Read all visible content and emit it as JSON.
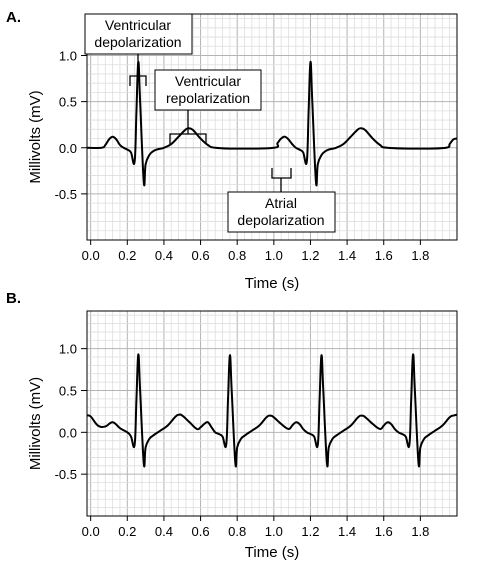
{
  "chart_data": [
    {
      "type": "line",
      "panel_label": "A.",
      "xlabel": "Time (s)",
      "ylabel": "Millivolts (mV)",
      "xlim": [
        -0.02,
        2.0
      ],
      "ylim": [
        -1.0,
        1.45
      ],
      "xticks": [
        0.0,
        0.2,
        0.4,
        0.6,
        0.8,
        1.0,
        1.2,
        1.4,
        1.6,
        1.8
      ],
      "xtick_labels": [
        "0.0",
        "0.2",
        "0.4",
        "0.6",
        "0.8",
        "1.0",
        "1.2",
        "1.4",
        "1.6",
        "1.8"
      ],
      "yticks": [
        1.0,
        0.5,
        0.0,
        -0.5
      ],
      "ytick_labels": [
        "1.0",
        "0.5",
        "0.0",
        "-0.5"
      ],
      "grid": true,
      "series": [
        {
          "x": [
            -0.02,
            0.06,
            0.08,
            0.1,
            0.12,
            0.14,
            0.16,
            0.18,
            0.2,
            0.22,
            0.24,
            0.25,
            0.26,
            0.27,
            0.29,
            0.3,
            0.32,
            0.34,
            0.36,
            0.4,
            0.44,
            0.48,
            0.52,
            0.54,
            0.56,
            0.6,
            0.64,
            0.68,
            0.8,
            1.0,
            1.02,
            1.04,
            1.06,
            1.08,
            1.1,
            1.12,
            1.14,
            1.16,
            1.18,
            1.19,
            1.2,
            1.21,
            1.23,
            1.24,
            1.26,
            1.28,
            1.3,
            1.34,
            1.38,
            1.42,
            1.46,
            1.48,
            1.5,
            1.54,
            1.58,
            1.62,
            1.8,
            1.94,
            1.96,
            1.98,
            2.0
          ],
          "y": [
            0.0,
            0.0,
            0.03,
            0.09,
            0.12,
            0.09,
            0.03,
            0.0,
            -0.02,
            -0.05,
            -0.15,
            0.4,
            0.93,
            0.5,
            -0.37,
            -0.18,
            -0.08,
            -0.04,
            -0.02,
            0.0,
            0.04,
            0.12,
            0.2,
            0.21,
            0.19,
            0.1,
            0.03,
            0.0,
            -0.01,
            0.0,
            0.05,
            0.1,
            0.12,
            0.09,
            0.04,
            0.0,
            -0.02,
            -0.05,
            -0.15,
            0.4,
            0.93,
            0.5,
            -0.37,
            -0.18,
            -0.08,
            -0.04,
            -0.02,
            0.0,
            0.04,
            0.12,
            0.2,
            0.21,
            0.19,
            0.1,
            0.03,
            0.0,
            -0.01,
            0.0,
            0.04,
            0.09,
            0.1
          ]
        }
      ],
      "annotations": [
        {
          "text": [
            "Ventricular",
            "depolarization"
          ]
        },
        {
          "text": [
            "Ventricular",
            "repolarization"
          ]
        },
        {
          "text": [
            "Atrial",
            "depolarization"
          ]
        }
      ]
    },
    {
      "type": "line",
      "panel_label": "B.",
      "xlabel": "Time (s)",
      "ylabel": "Millivolts (mV)",
      "xlim": [
        -0.02,
        2.0
      ],
      "ylim": [
        -1.0,
        1.45
      ],
      "xticks": [
        0.0,
        0.2,
        0.4,
        0.6,
        0.8,
        1.0,
        1.2,
        1.4,
        1.6,
        1.8
      ],
      "xtick_labels": [
        "0.0",
        "0.2",
        "0.4",
        "0.6",
        "0.8",
        "1.0",
        "1.2",
        "1.4",
        "1.6",
        "1.8"
      ],
      "yticks": [
        1.0,
        0.5,
        0.0,
        -0.5
      ],
      "ytick_labels": [
        "1.0",
        "0.5",
        "0.0",
        "-0.5"
      ],
      "grid": true,
      "series": [
        {
          "x": [
            -0.02,
            0.0,
            0.04,
            0.08,
            0.12,
            0.16,
            0.2,
            0.22,
            0.24,
            0.25,
            0.26,
            0.27,
            0.29,
            0.3,
            0.32,
            0.34,
            0.38,
            0.42,
            0.46,
            0.48,
            0.5,
            0.54,
            0.58,
            0.6,
            0.62,
            0.64,
            0.66,
            0.68,
            0.7,
            0.72,
            0.74,
            0.75,
            0.76,
            0.77,
            0.79,
            0.8,
            0.82,
            0.84,
            0.88,
            0.92,
            0.96,
            0.98,
            1.0,
            1.04,
            1.08,
            1.1,
            1.12,
            1.14,
            1.16,
            1.18,
            1.2,
            1.22,
            1.24,
            1.25,
            1.26,
            1.27,
            1.29,
            1.3,
            1.32,
            1.34,
            1.38,
            1.42,
            1.46,
            1.48,
            1.5,
            1.54,
            1.58,
            1.6,
            1.62,
            1.64,
            1.66,
            1.68,
            1.7,
            1.72,
            1.74,
            1.75,
            1.76,
            1.77,
            1.79,
            1.8,
            1.82,
            1.84,
            1.88,
            1.92,
            1.96,
            1.98,
            2.0
          ],
          "y": [
            0.2,
            0.19,
            0.08,
            0.07,
            0.12,
            0.05,
            0.0,
            -0.05,
            -0.15,
            0.4,
            0.93,
            0.5,
            -0.37,
            -0.18,
            -0.08,
            -0.04,
            0.02,
            0.08,
            0.18,
            0.21,
            0.2,
            0.12,
            0.04,
            0.06,
            0.1,
            0.12,
            0.06,
            0.0,
            -0.02,
            -0.05,
            -0.15,
            0.4,
            0.92,
            0.5,
            -0.37,
            -0.18,
            -0.08,
            -0.04,
            0.02,
            0.08,
            0.18,
            0.2,
            0.18,
            0.1,
            0.04,
            0.08,
            0.12,
            0.1,
            0.04,
            0.0,
            -0.02,
            -0.05,
            -0.15,
            0.4,
            0.92,
            0.5,
            -0.37,
            -0.18,
            -0.08,
            -0.04,
            0.02,
            0.08,
            0.18,
            0.2,
            0.18,
            0.1,
            0.04,
            0.08,
            0.12,
            0.1,
            0.04,
            0.0,
            -0.02,
            -0.05,
            -0.15,
            0.4,
            0.93,
            0.5,
            -0.37,
            -0.18,
            -0.08,
            -0.04,
            0.02,
            0.08,
            0.18,
            0.2,
            0.21
          ]
        }
      ],
      "annotations": []
    }
  ]
}
